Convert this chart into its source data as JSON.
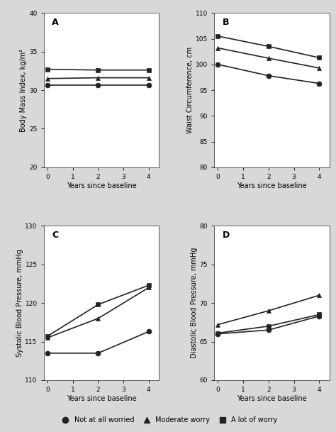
{
  "x": [
    0,
    2,
    4
  ],
  "panel_A": {
    "title": "A",
    "ylabel": "Body Mass Index, kg/m²",
    "xlabel": "Years since baseline",
    "ylim": [
      20,
      40
    ],
    "yticks": [
      20,
      25,
      30,
      35,
      40
    ],
    "xlim": [
      -0.15,
      4.4
    ],
    "xticks": [
      0,
      1,
      2,
      3,
      4
    ],
    "circle": [
      30.6,
      30.6,
      30.6
    ],
    "triangle": [
      31.5,
      31.6,
      31.6
    ],
    "square": [
      32.7,
      32.6,
      32.6
    ]
  },
  "panel_B": {
    "title": "B",
    "ylabel": "Waist Circumference, cm",
    "xlabel": "Years since baseline",
    "ylim": [
      80,
      110
    ],
    "yticks": [
      80,
      85,
      90,
      95,
      100,
      105,
      110
    ],
    "xlim": [
      -0.15,
      4.4
    ],
    "xticks": [
      0,
      1,
      2,
      3,
      4
    ],
    "circle": [
      100.0,
      97.8,
      96.3
    ],
    "triangle": [
      103.2,
      101.2,
      99.3
    ],
    "square": [
      105.5,
      103.5,
      101.3
    ]
  },
  "panel_C": {
    "title": "C",
    "ylabel": "Systolic Blood Pressure, mmHg",
    "xlabel": "Years since baseline",
    "ylim": [
      110,
      130
    ],
    "yticks": [
      110,
      115,
      120,
      125,
      130
    ],
    "xlim": [
      -0.15,
      4.4
    ],
    "xticks": [
      0,
      1,
      2,
      3,
      4
    ],
    "circle": [
      113.5,
      113.5,
      116.3
    ],
    "triangle": [
      115.5,
      118.0,
      122.0
    ],
    "square": [
      115.7,
      119.8,
      122.3
    ]
  },
  "panel_D": {
    "title": "D",
    "ylabel": "Diastolic Blood Pressure, mmHg",
    "xlabel": "Years since baseline",
    "ylim": [
      60,
      80
    ],
    "yticks": [
      60,
      65,
      70,
      75,
      80
    ],
    "xlim": [
      -0.15,
      4.4
    ],
    "xticks": [
      0,
      1,
      2,
      3,
      4
    ],
    "circle": [
      66.0,
      66.5,
      68.3
    ],
    "triangle": [
      67.2,
      69.0,
      71.0
    ],
    "square": [
      66.1,
      67.0,
      68.5
    ]
  },
  "legend_labels": [
    "Not at all worried",
    "Moderate worry",
    "A lot of worry"
  ],
  "line_color": "#222222",
  "bg_color": "#d8d8d8",
  "marker_circle": "o",
  "marker_triangle": "^",
  "marker_square": "s",
  "markersize": 5,
  "linewidth": 1.2,
  "fontsize_label": 7.0,
  "fontsize_tick": 6.5,
  "fontsize_title": 9,
  "fontsize_legend": 7
}
